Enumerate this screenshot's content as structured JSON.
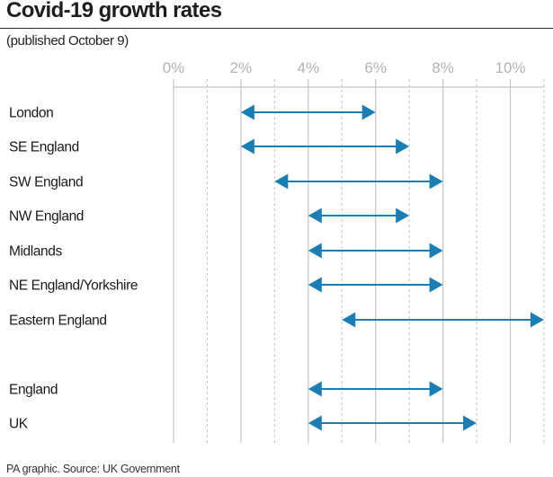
{
  "header": {
    "title": "Covid-19 growth rates",
    "subtitle": "(published October 9)"
  },
  "footer": {
    "source": "PA graphic. Source: UK Government"
  },
  "colors": {
    "arrow": "#1a7db3",
    "grid": "#c4c4c4",
    "tick_label": "#b3b3b3",
    "text": "#1a1a1a"
  },
  "chart_data": {
    "type": "range",
    "title": "Covid-19 growth rates",
    "subtitle": "(published October 9)",
    "xlabel": "",
    "ylabel": "",
    "xlim": [
      0,
      11
    ],
    "x_ticks": [
      0,
      2,
      4,
      6,
      8,
      10
    ],
    "x_tick_labels": [
      "0%",
      "2%",
      "4%",
      "6%",
      "8%",
      "10%"
    ],
    "minor_gridlines": [
      1,
      3,
      5,
      7,
      9,
      11
    ],
    "grid": true,
    "unit": "%",
    "categories": [
      "London",
      "SE England",
      "SW England",
      "NW England",
      "Midlands",
      "NE England/Yorkshire",
      "Eastern England",
      "",
      "England",
      "UK"
    ],
    "series": [
      {
        "name": "London",
        "low": 2,
        "high": 6
      },
      {
        "name": "SE England",
        "low": 2,
        "high": 7
      },
      {
        "name": "SW England",
        "low": 3,
        "high": 8
      },
      {
        "name": "NW England",
        "low": 4,
        "high": 7
      },
      {
        "name": "Midlands",
        "low": 4,
        "high": 8
      },
      {
        "name": "NE England/Yorkshire",
        "low": 4,
        "high": 8
      },
      {
        "name": "Eastern England",
        "low": 5,
        "high": 11
      },
      {
        "name": "England",
        "low": 4,
        "high": 8
      },
      {
        "name": "UK",
        "low": 4,
        "high": 9
      }
    ],
    "source": "PA graphic. Source: UK Government"
  }
}
